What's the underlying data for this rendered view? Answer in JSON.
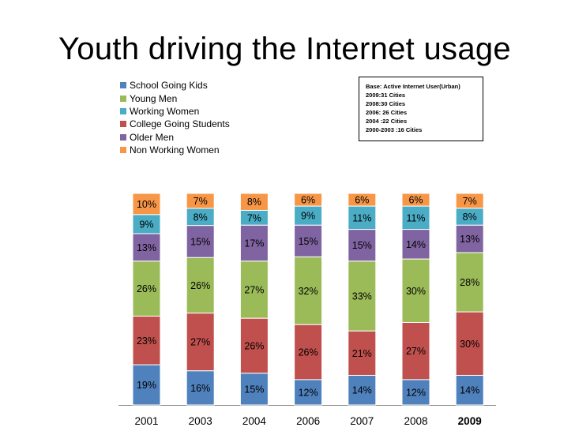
{
  "slide": {
    "title": "Youth driving the Internet usage"
  },
  "base_note": {
    "lines": [
      "Base: Active Internet User(Urban)",
      "2009:31 Cities",
      "2008:30 Cities",
      "2006: 26 Cities",
      "2004 :22 Cities",
      "2000-2003 :16 Cities"
    ]
  },
  "chart_data": {
    "type": "bar",
    "stacked": true,
    "categories": [
      "2001",
      "2003",
      "2004",
      "2006",
      "2007",
      "2008",
      "2009"
    ],
    "legend_position": "top-left",
    "grid": false,
    "series": [
      {
        "name": "School Going Kids",
        "color": "#4F81BD",
        "values": [
          19,
          16,
          15,
          12,
          14,
          12,
          14
        ],
        "labels": [
          "19%",
          "16%",
          "15%",
          "12%",
          "14%",
          "12%",
          "14%"
        ]
      },
      {
        "name": "College Going Students",
        "color": "#C0504D",
        "values": [
          23,
          27,
          26,
          26,
          21,
          27,
          30
        ],
        "labels": [
          "23%",
          "27%",
          "26%",
          "26%",
          "21%",
          "27%",
          "30%"
        ]
      },
      {
        "name": "Young Men",
        "color": "#9BBB59",
        "values": [
          26,
          26,
          27,
          32,
          33,
          30,
          28
        ],
        "labels": [
          "26%",
          "26%",
          "27%",
          "32%",
          "33%",
          "30%",
          "28%"
        ]
      },
      {
        "name": "Older Men",
        "color": "#8064A2",
        "values": [
          13,
          15,
          17,
          15,
          15,
          14,
          13
        ],
        "labels": [
          "13%",
          "15%",
          "17%",
          "15%",
          "15%",
          "14%",
          "13%"
        ]
      },
      {
        "name": "Working Women",
        "color": "#4BACC6",
        "values": [
          9,
          8,
          7,
          9,
          11,
          11,
          8
        ],
        "labels": [
          "9%",
          "8%",
          "7%",
          "9%",
          "11%",
          "11%",
          "8%"
        ]
      },
      {
        "name": "Non Working Women",
        "color": "#F79646",
        "values": [
          10,
          7,
          8,
          6,
          6,
          6,
          7
        ],
        "labels": [
          "10%",
          "7%",
          "8%",
          "6%",
          "6%",
          "6%",
          "7%"
        ]
      }
    ],
    "legend_order": [
      "School Going Kids",
      "Young Men",
      "Working Women",
      "College Going Students",
      "Older Men",
      "Non Working Women"
    ]
  }
}
